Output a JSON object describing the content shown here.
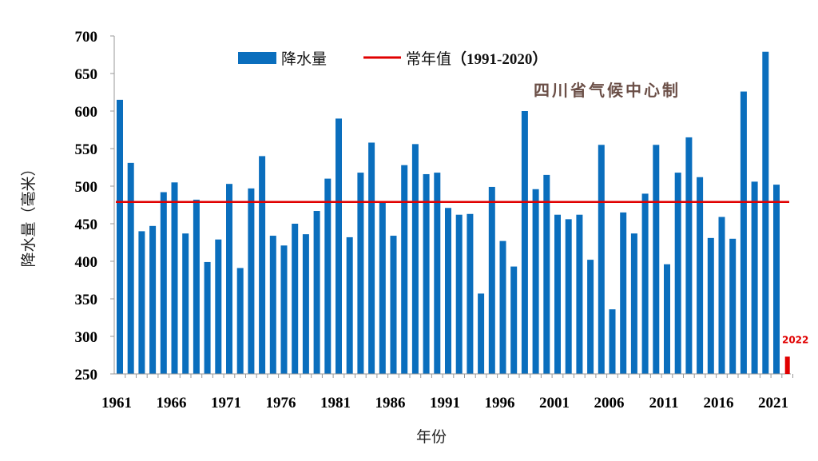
{
  "chart_data": {
    "type": "bar",
    "title": "",
    "xlabel": "年份",
    "ylabel": "降水量（毫米）",
    "ylim": [
      250,
      700
    ],
    "yticks": [
      250,
      300,
      350,
      400,
      450,
      500,
      550,
      600,
      650,
      700
    ],
    "xtick_labels": [
      "1961",
      "1966",
      "1971",
      "1976",
      "1981",
      "1986",
      "1991",
      "1996",
      "2001",
      "2006",
      "2011",
      "2016",
      "2021"
    ],
    "grid": false,
    "legend_placement": "top",
    "watermark": "四川省气候中心制",
    "series": [
      {
        "name": "降水量",
        "color": "#0a6ebd",
        "x": [
          1961,
          1962,
          1963,
          1964,
          1965,
          1966,
          1967,
          1968,
          1969,
          1970,
          1971,
          1972,
          1973,
          1974,
          1975,
          1976,
          1977,
          1978,
          1979,
          1980,
          1981,
          1982,
          1983,
          1984,
          1985,
          1986,
          1987,
          1988,
          1989,
          1990,
          1991,
          1992,
          1993,
          1994,
          1995,
          1996,
          1997,
          1998,
          1999,
          2000,
          2001,
          2002,
          2003,
          2004,
          2005,
          2006,
          2007,
          2008,
          2009,
          2010,
          2011,
          2012,
          2013,
          2014,
          2015,
          2016,
          2017,
          2018,
          2019,
          2020,
          2021
        ],
        "values": [
          615,
          531,
          440,
          447,
          492,
          505,
          437,
          482,
          399,
          429,
          503,
          391,
          497,
          540,
          434,
          421,
          450,
          436,
          467,
          510,
          590,
          432,
          518,
          558,
          478,
          434,
          528,
          556,
          516,
          518,
          471,
          462,
          463,
          357,
          499,
          427,
          393,
          600,
          496,
          515,
          462,
          456,
          462,
          402,
          555,
          336,
          465,
          437,
          490,
          555,
          396,
          518,
          565,
          512,
          431,
          459,
          430,
          626,
          506,
          679,
          502
        ]
      },
      {
        "name": "常年值（1991-2020）",
        "type": "line",
        "color": "#e00000",
        "value": 479
      }
    ],
    "highlight": {
      "label": "2022",
      "x": 2022,
      "value": 273,
      "color": "#e00000"
    }
  },
  "legend": {
    "bar_label": "降水量",
    "line_label_cn": "常年值",
    "line_label_period": "（1991-2020）"
  }
}
